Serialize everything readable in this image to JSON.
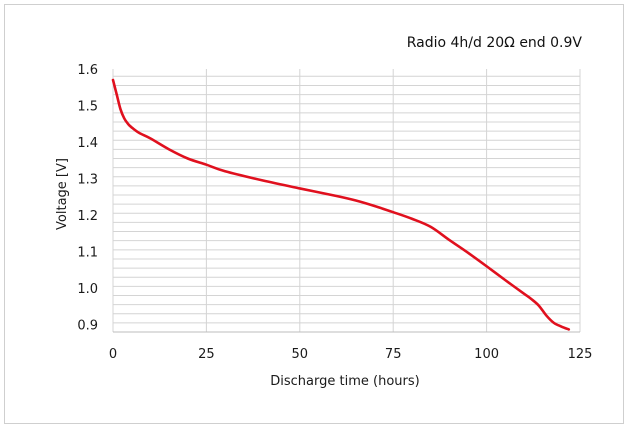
{
  "chart_data": {
    "type": "line",
    "title": "Radio 4h/d 20Ω end 0.9V",
    "xlabel": "Discharge time (hours)",
    "ylabel": "Voltage [V]",
    "xlim": [
      0,
      125
    ],
    "ylim": [
      0.88,
      1.6
    ],
    "x_ticks": [
      0,
      25,
      50,
      75,
      100,
      125
    ],
    "y_ticks": [
      0.9,
      1.0,
      1.1,
      1.2,
      1.3,
      1.4,
      1.5,
      1.6
    ],
    "y_tick_labels": [
      "0.9",
      "1.0",
      "1.1",
      "1.2",
      "1.3",
      "1.4",
      "1.5",
      "1.6"
    ],
    "x_tick_labels": [
      "0",
      "25",
      "50",
      "75",
      "100",
      "125"
    ],
    "grid": true,
    "series": [
      {
        "color": "#e0101e",
        "x": [
          0,
          1,
          2,
          3,
          4,
          5,
          7,
          10,
          15,
          20,
          25,
          30,
          40,
          50,
          60,
          65,
          70,
          75,
          80,
          85,
          90,
          95,
          100,
          105,
          110,
          112,
          114,
          116,
          118,
          120,
          122
        ],
        "y": [
          1.57,
          1.53,
          1.49,
          1.465,
          1.45,
          1.44,
          1.425,
          1.41,
          1.38,
          1.355,
          1.338,
          1.32,
          1.295,
          1.273,
          1.252,
          1.24,
          1.225,
          1.208,
          1.19,
          1.168,
          1.132,
          1.097,
          1.06,
          1.022,
          0.985,
          0.97,
          0.952,
          0.925,
          0.905,
          0.895,
          0.887
        ]
      }
    ]
  }
}
